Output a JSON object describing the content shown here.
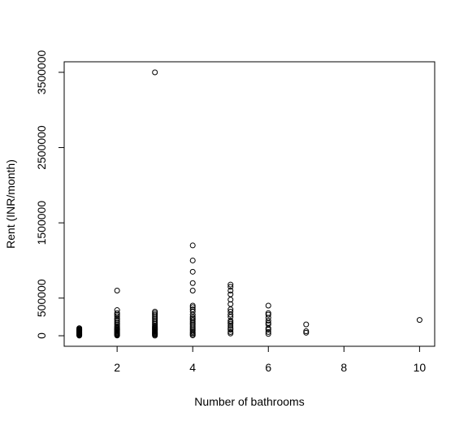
{
  "chart_data": {
    "type": "scatter",
    "title": "",
    "xlabel": "Number of bathrooms",
    "ylabel": "Rent (INR/month)",
    "xlim": [
      0.6,
      10.4
    ],
    "ylim": [
      -140000,
      3640000
    ],
    "x_ticks": [
      2,
      4,
      6,
      8,
      10
    ],
    "x_tick_labels": [
      "2",
      "4",
      "6",
      "8",
      "10"
    ],
    "y_ticks": [
      0,
      500000,
      1500000,
      2500000,
      3500000
    ],
    "y_tick_labels": [
      "0",
      "500000",
      "1500000",
      "2500000",
      "3500000"
    ],
    "grid": false,
    "legend": "none",
    "marker": "open-circle",
    "colors": {
      "marker": "#000000",
      "axis": "#000000",
      "background": "#ffffff"
    },
    "points": [
      [
        1,
        1500
      ],
      [
        1,
        8000
      ],
      [
        1,
        15000
      ],
      [
        1,
        22000
      ],
      [
        1,
        30000
      ],
      [
        1,
        38000
      ],
      [
        1,
        45000
      ],
      [
        1,
        52000
      ],
      [
        1,
        60000
      ],
      [
        1,
        68000
      ],
      [
        1,
        75000
      ],
      [
        1,
        82000
      ],
      [
        1,
        90000
      ],
      [
        1,
        100000
      ],
      [
        2,
        3000
      ],
      [
        2,
        12000
      ],
      [
        2,
        20000
      ],
      [
        2,
        30000
      ],
      [
        2,
        40000
      ],
      [
        2,
        50000
      ],
      [
        2,
        60000
      ],
      [
        2,
        70000
      ],
      [
        2,
        80000
      ],
      [
        2,
        90000
      ],
      [
        2,
        100000
      ],
      [
        2,
        115000
      ],
      [
        2,
        130000
      ],
      [
        2,
        150000
      ],
      [
        2,
        170000
      ],
      [
        2,
        190000
      ],
      [
        2,
        210000
      ],
      [
        2,
        230000
      ],
      [
        2,
        260000
      ],
      [
        2,
        280000
      ],
      [
        2,
        300000
      ],
      [
        2,
        340000
      ],
      [
        2,
        600000
      ],
      [
        3,
        2000
      ],
      [
        3,
        15000
      ],
      [
        3,
        25000
      ],
      [
        3,
        35000
      ],
      [
        3,
        45000
      ],
      [
        3,
        55000
      ],
      [
        3,
        65000
      ],
      [
        3,
        75000
      ],
      [
        3,
        85000
      ],
      [
        3,
        95000
      ],
      [
        3,
        105000
      ],
      [
        3,
        115000
      ],
      [
        3,
        125000
      ],
      [
        3,
        140000
      ],
      [
        3,
        160000
      ],
      [
        3,
        180000
      ],
      [
        3,
        200000
      ],
      [
        3,
        220000
      ],
      [
        3,
        240000
      ],
      [
        3,
        260000
      ],
      [
        3,
        280000
      ],
      [
        3,
        300000
      ],
      [
        3,
        320000
      ],
      [
        3,
        3500000
      ],
      [
        4,
        5000
      ],
      [
        4,
        20000
      ],
      [
        4,
        35000
      ],
      [
        4,
        50000
      ],
      [
        4,
        70000
      ],
      [
        4,
        90000
      ],
      [
        4,
        110000
      ],
      [
        4,
        130000
      ],
      [
        4,
        150000
      ],
      [
        4,
        170000
      ],
      [
        4,
        190000
      ],
      [
        4,
        210000
      ],
      [
        4,
        230000
      ],
      [
        4,
        250000
      ],
      [
        4,
        280000
      ],
      [
        4,
        320000
      ],
      [
        4,
        350000
      ],
      [
        4,
        380000
      ],
      [
        4,
        400000
      ],
      [
        4,
        600000
      ],
      [
        4,
        700000
      ],
      [
        4,
        850000
      ],
      [
        4,
        1000000
      ],
      [
        4,
        1200000
      ],
      [
        5,
        30000
      ],
      [
        5,
        50000
      ],
      [
        5,
        80000
      ],
      [
        5,
        100000
      ],
      [
        5,
        130000
      ],
      [
        5,
        160000
      ],
      [
        5,
        180000
      ],
      [
        5,
        200000
      ],
      [
        5,
        250000
      ],
      [
        5,
        280000
      ],
      [
        5,
        320000
      ],
      [
        5,
        350000
      ],
      [
        5,
        420000
      ],
      [
        5,
        480000
      ],
      [
        5,
        550000
      ],
      [
        5,
        600000
      ],
      [
        5,
        650000
      ],
      [
        5,
        680000
      ],
      [
        6,
        25000
      ],
      [
        6,
        50000
      ],
      [
        6,
        80000
      ],
      [
        6,
        100000
      ],
      [
        6,
        150000
      ],
      [
        6,
        170000
      ],
      [
        6,
        200000
      ],
      [
        6,
        240000
      ],
      [
        6,
        280000
      ],
      [
        6,
        300000
      ],
      [
        6,
        400000
      ],
      [
        7,
        40000
      ],
      [
        7,
        60000
      ],
      [
        7,
        150000
      ],
      [
        10,
        210000
      ]
    ]
  }
}
